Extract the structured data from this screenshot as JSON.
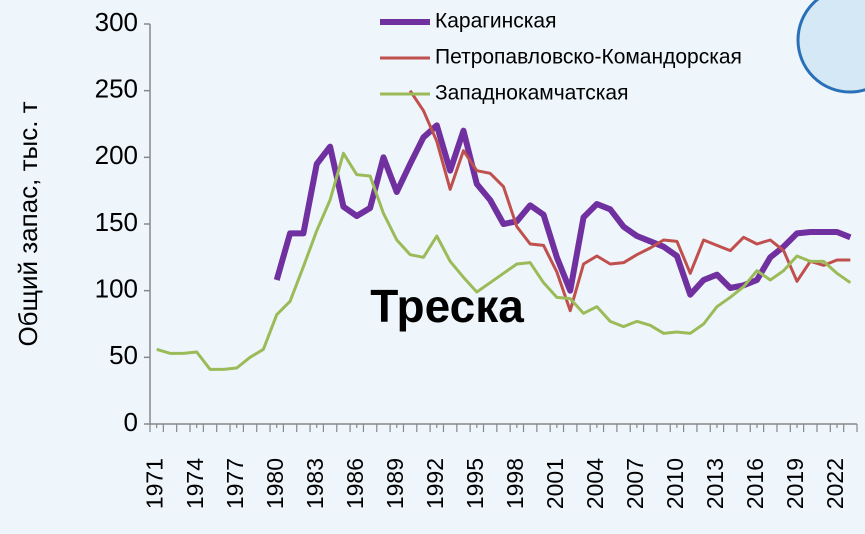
{
  "chart_data": {
    "type": "line",
    "annotation": "Треска",
    "ylabel": "Общий запас, тыс. т",
    "x": [
      1971,
      1972,
      1973,
      1974,
      1975,
      1976,
      1977,
      1978,
      1979,
      1980,
      1981,
      1982,
      1983,
      1984,
      1985,
      1986,
      1987,
      1988,
      1989,
      1990,
      1991,
      1992,
      1993,
      1994,
      1995,
      1996,
      1997,
      1998,
      1999,
      2000,
      2001,
      2002,
      2003,
      2004,
      2005,
      2006,
      2007,
      2008,
      2009,
      2010,
      2011,
      2012,
      2013,
      2014,
      2015,
      2016,
      2017,
      2018,
      2019,
      2020,
      2021,
      2022,
      2023
    ],
    "xlim": [
      1970.5,
      2023.5
    ],
    "xticks": [
      1971,
      1974,
      1977,
      1980,
      1983,
      1986,
      1989,
      1992,
      1995,
      1998,
      2001,
      2004,
      2007,
      2010,
      2013,
      2016,
      2019,
      2022
    ],
    "ylim": [
      0,
      300
    ],
    "yticks": [
      0,
      50,
      100,
      150,
      200,
      250,
      300
    ],
    "series": [
      {
        "name": "Карагинская",
        "color": "#7030a0",
        "values": [
          null,
          null,
          null,
          null,
          null,
          null,
          null,
          null,
          null,
          108,
          143,
          143,
          195,
          208,
          163,
          156,
          162,
          200,
          174,
          195,
          215,
          224,
          190,
          220,
          180,
          168,
          150,
          152,
          164,
          157,
          125,
          100,
          155,
          165,
          161,
          148,
          141,
          137,
          133,
          126,
          97,
          108,
          112,
          102,
          104,
          108,
          125,
          133,
          143,
          144,
          144,
          144,
          140
        ]
      },
      {
        "name": "Петропавловско-Командорская",
        "color": "#c0504d",
        "values": [
          null,
          null,
          null,
          null,
          null,
          null,
          null,
          null,
          null,
          null,
          null,
          null,
          null,
          null,
          null,
          null,
          null,
          null,
          null,
          250,
          235,
          212,
          176,
          205,
          190,
          188,
          178,
          148,
          135,
          134,
          114,
          85,
          120,
          126,
          120,
          121,
          127,
          132,
          138,
          137,
          113,
          138,
          134,
          130,
          140,
          135,
          138,
          130,
          107,
          122,
          119,
          123,
          123
        ]
      },
      {
        "name": "Западнокамчатская",
        "color": "#9bbb59",
        "values": [
          56,
          53,
          53,
          54,
          41,
          41,
          42,
          50,
          56,
          82,
          92,
          118,
          145,
          168,
          203,
          187,
          186,
          158,
          138,
          127,
          125,
          141,
          122,
          110,
          99,
          106,
          113,
          120,
          121,
          106,
          95,
          94,
          83,
          88,
          77,
          73,
          77,
          74,
          68,
          69,
          68,
          75,
          88,
          95,
          103,
          115,
          108,
          115,
          126,
          122,
          122,
          113,
          106
        ]
      }
    ]
  }
}
